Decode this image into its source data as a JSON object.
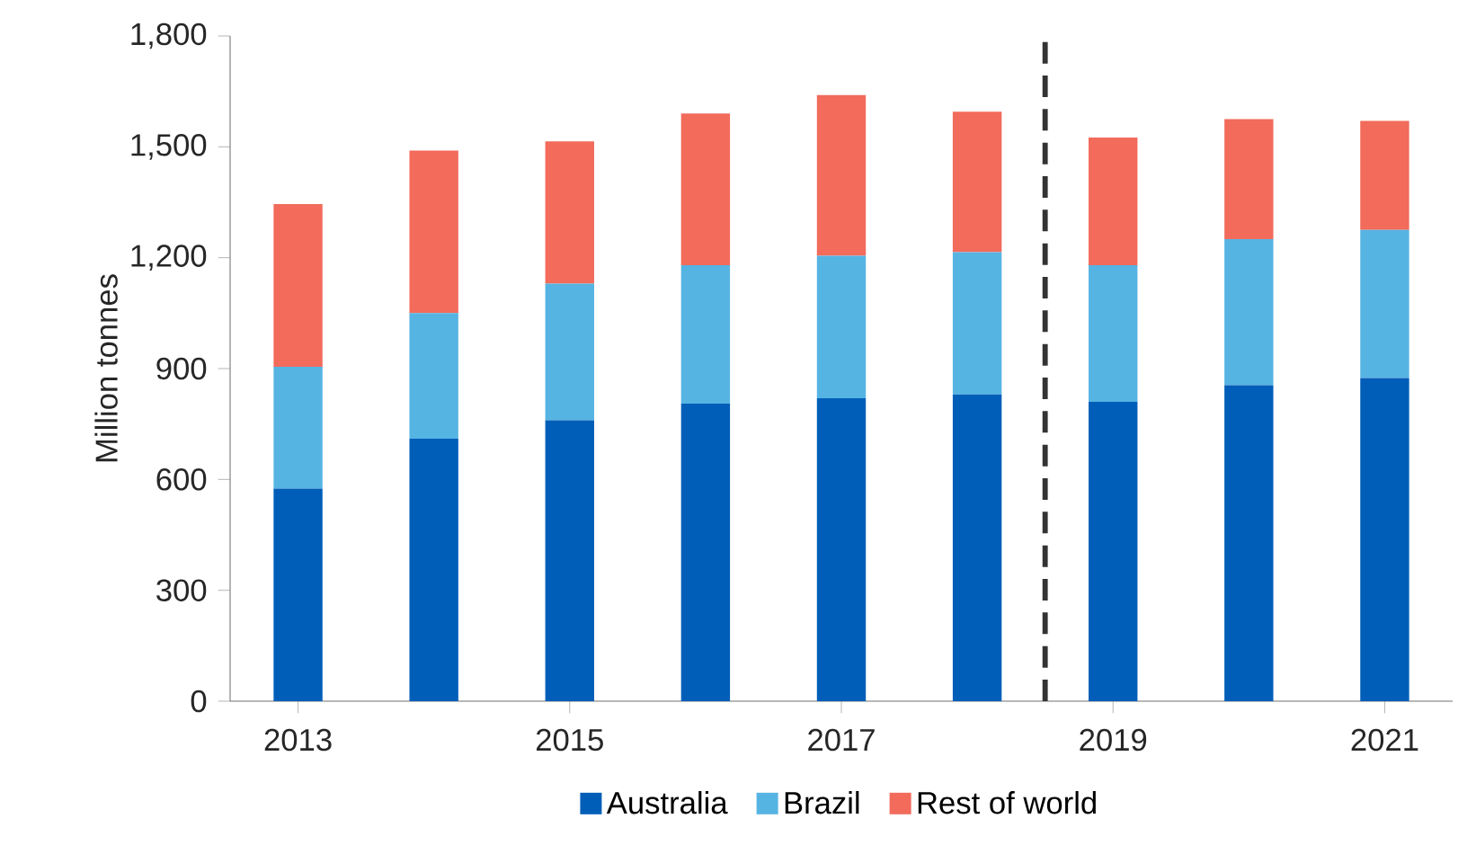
{
  "chart_data": {
    "type": "bar",
    "stacked": true,
    "ylabel": "Million tonnes",
    "x": [
      2013,
      2014,
      2015,
      2016,
      2017,
      2018,
      2019,
      2020,
      2021
    ],
    "xlim": [
      2012.5,
      2021.5
    ],
    "xticks": [
      2013,
      2015,
      2017,
      2019,
      2021
    ],
    "ylim": [
      0,
      1800
    ],
    "yticks": [
      0,
      300,
      600,
      900,
      {
        "value": 1200,
        "label": "1,200"
      },
      {
        "value": 1500,
        "label": "1,500"
      },
      {
        "value": 1800,
        "label": "1,800"
      }
    ],
    "series": [
      {
        "name": "Australia",
        "color": "#005eb8",
        "values": [
          575,
          710,
          760,
          805,
          820,
          830,
          810,
          855,
          875
        ]
      },
      {
        "name": "Brazil",
        "color": "#56b4e3",
        "values": [
          330,
          340,
          370,
          375,
          385,
          385,
          370,
          395,
          400
        ]
      },
      {
        "name": "Rest of world",
        "color": "#f26b5b",
        "values": [
          440,
          440,
          385,
          410,
          435,
          380,
          345,
          325,
          295
        ]
      }
    ],
    "ref_lines": [
      {
        "axis": "x",
        "value": 2018.5,
        "color": "#333333",
        "line_style": "dashed"
      }
    ],
    "grid": false,
    "legend": "bottom"
  }
}
